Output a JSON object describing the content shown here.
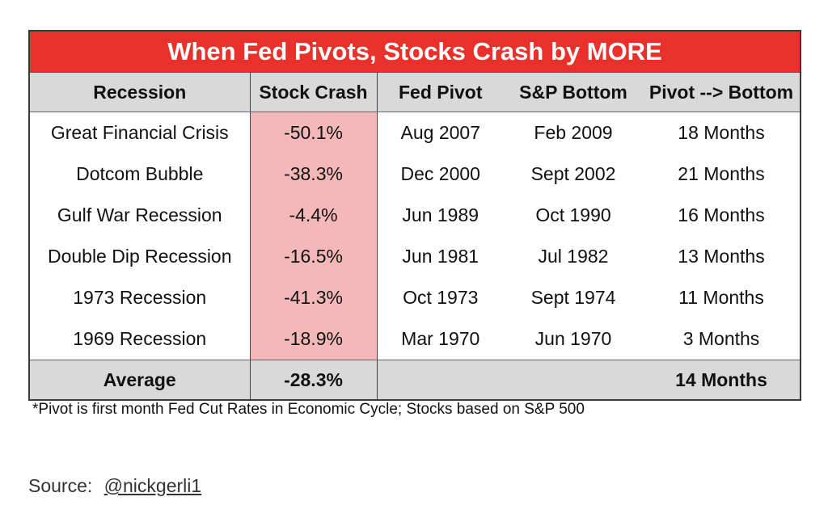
{
  "colors": {
    "title_bg": "#e8312a",
    "header_bg": "#d9d9d9",
    "crash_bg": "#f4b8b8"
  },
  "title": "When Fed Pivots, Stocks Crash by MORE",
  "headers": [
    "Recession",
    "Stock Crash",
    "Fed Pivot",
    "S&P Bottom",
    "Pivot --> Bottom"
  ],
  "rows": [
    [
      "Great Financial Crisis",
      "-50.1%",
      "Aug 2007",
      "Feb 2009",
      "18 Months"
    ],
    [
      "Dotcom Bubble",
      "-38.3%",
      "Dec 2000",
      "Sept 2002",
      "21 Months"
    ],
    [
      "Gulf War Recession",
      "-4.4%",
      "Jun 1989",
      "Oct 1990",
      "16 Months"
    ],
    [
      "Double Dip Recession",
      "-16.5%",
      "Jun 1981",
      "Jul 1982",
      "13 Months"
    ],
    [
      "1973 Recession",
      "-41.3%",
      "Oct 1973",
      "Sept 1974",
      "11 Months"
    ],
    [
      "1969 Recession",
      "-18.9%",
      "Mar 1970",
      "Jun 1970",
      "3 Months"
    ]
  ],
  "average": {
    "label": "Average",
    "crash": "-28.3%",
    "months": "14 Months"
  },
  "footnote": "*Pivot is first month Fed Cut Rates in Economic Cycle; Stocks based on S&P 500",
  "source": {
    "label": "Source:",
    "link": "@nickgerli1"
  }
}
